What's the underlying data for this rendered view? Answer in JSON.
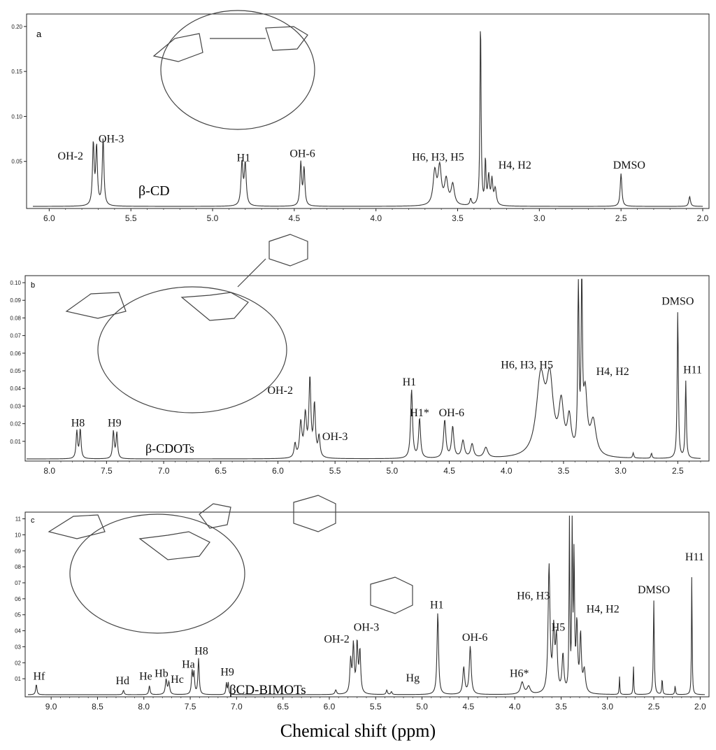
{
  "figure": {
    "xlabel": "Chemical shift (ppm)"
  },
  "chart_data": [
    {
      "type": "line",
      "panel_letter": "a",
      "compound_label": "β-CD",
      "xlim": [
        6.1,
        2.0
      ],
      "ylim": [
        0,
        0.23
      ],
      "x_ticks": [
        "6.0",
        "5.5",
        "5.0",
        "4.5",
        "4.0",
        "3.5",
        "3.0",
        "2.5",
        "2.0"
      ],
      "y_ticks": [
        "0.20",
        "0.15",
        "0.10",
        "0.05"
      ],
      "peaks": [
        {
          "ppm": 5.73,
          "h": 0.075,
          "w": 0.006
        },
        {
          "ppm": 5.71,
          "h": 0.07,
          "w": 0.006
        },
        {
          "ppm": 5.67,
          "h": 0.082,
          "w": 0.006
        },
        {
          "ppm": 4.82,
          "h": 0.052,
          "w": 0.007
        },
        {
          "ppm": 4.8,
          "h": 0.05,
          "w": 0.007
        },
        {
          "ppm": 4.46,
          "h": 0.052,
          "w": 0.006
        },
        {
          "ppm": 4.44,
          "h": 0.045,
          "w": 0.006
        },
        {
          "ppm": 3.64,
          "h": 0.04,
          "w": 0.012
        },
        {
          "ppm": 3.61,
          "h": 0.045,
          "w": 0.012
        },
        {
          "ppm": 3.57,
          "h": 0.03,
          "w": 0.012
        },
        {
          "ppm": 3.53,
          "h": 0.025,
          "w": 0.012
        },
        {
          "ppm": 3.42,
          "h": 0.008,
          "w": 0.006
        },
        {
          "ppm": 3.36,
          "h": 0.23,
          "w": 0.004
        },
        {
          "ppm": 3.33,
          "h": 0.055,
          "w": 0.004
        },
        {
          "ppm": 3.31,
          "h": 0.035,
          "w": 0.006
        },
        {
          "ppm": 3.29,
          "h": 0.03,
          "w": 0.006
        },
        {
          "ppm": 3.27,
          "h": 0.02,
          "w": 0.008
        },
        {
          "ppm": 2.5,
          "h": 0.04,
          "w": 0.006
        },
        {
          "ppm": 2.08,
          "h": 0.012,
          "w": 0.006
        }
      ],
      "annotations": [
        {
          "text": "OH-2",
          "ppm": 5.87,
          "y": 0.057
        },
        {
          "text": "OH-3",
          "ppm": 5.62,
          "y": 0.078
        },
        {
          "text": "H1",
          "ppm": 4.81,
          "y": 0.055
        },
        {
          "text": "OH-6",
          "ppm": 4.45,
          "y": 0.06
        },
        {
          "text": "H6, H3, H5",
          "ppm": 3.62,
          "y": 0.056
        },
        {
          "text": "H4, H2",
          "ppm": 3.15,
          "y": 0.046
        },
        {
          "text": "DMSO",
          "ppm": 2.45,
          "y": 0.046
        }
      ]
    },
    {
      "type": "line",
      "panel_letter": "b",
      "compound_label": "β-CDOTs",
      "xlim": [
        8.2,
        2.3
      ],
      "ylim": [
        0,
        0.105
      ],
      "x_ticks": [
        "8.0",
        "7.5",
        "7.0",
        "6.5",
        "6.0",
        "5.5",
        "5.0",
        "4.5",
        "4.0",
        "3.5",
        "3.0",
        "2.5"
      ],
      "y_ticks": [
        "0.10",
        "0.09",
        "0.08",
        "0.07",
        "0.06",
        "0.05",
        "0.04",
        "0.03",
        "0.02",
        "0.01"
      ],
      "peaks": [
        {
          "ppm": 7.76,
          "h": 0.016,
          "w": 0.008
        },
        {
          "ppm": 7.73,
          "h": 0.017,
          "w": 0.008
        },
        {
          "ppm": 7.44,
          "h": 0.016,
          "w": 0.008
        },
        {
          "ppm": 7.41,
          "h": 0.015,
          "w": 0.008
        },
        {
          "ppm": 5.85,
          "h": 0.008,
          "w": 0.01
        },
        {
          "ppm": 5.8,
          "h": 0.02,
          "w": 0.012
        },
        {
          "ppm": 5.76,
          "h": 0.024,
          "w": 0.012
        },
        {
          "ppm": 5.72,
          "h": 0.045,
          "w": 0.01
        },
        {
          "ppm": 5.68,
          "h": 0.03,
          "w": 0.01
        },
        {
          "ppm": 5.64,
          "h": 0.012,
          "w": 0.01
        },
        {
          "ppm": 4.83,
          "h": 0.04,
          "w": 0.01
        },
        {
          "ppm": 4.76,
          "h": 0.023,
          "w": 0.01
        },
        {
          "ppm": 4.54,
          "h": 0.022,
          "w": 0.012
        },
        {
          "ppm": 4.47,
          "h": 0.018,
          "w": 0.012
        },
        {
          "ppm": 4.38,
          "h": 0.01,
          "w": 0.015
        },
        {
          "ppm": 4.3,
          "h": 0.008,
          "w": 0.015
        },
        {
          "ppm": 4.18,
          "h": 0.006,
          "w": 0.02
        },
        {
          "ppm": 3.7,
          "h": 0.045,
          "w": 0.045
        },
        {
          "ppm": 3.62,
          "h": 0.04,
          "w": 0.035
        },
        {
          "ppm": 3.52,
          "h": 0.028,
          "w": 0.025
        },
        {
          "ppm": 3.45,
          "h": 0.02,
          "w": 0.02
        },
        {
          "ppm": 3.37,
          "h": 0.105,
          "w": 0.006
        },
        {
          "ppm": 3.34,
          "h": 0.105,
          "w": 0.006
        },
        {
          "ppm": 3.31,
          "h": 0.035,
          "w": 0.02
        },
        {
          "ppm": 3.24,
          "h": 0.02,
          "w": 0.03
        },
        {
          "ppm": 2.89,
          "h": 0.003,
          "w": 0.006
        },
        {
          "ppm": 2.73,
          "h": 0.003,
          "w": 0.006
        },
        {
          "ppm": 2.5,
          "h": 0.086,
          "w": 0.006
        },
        {
          "ppm": 2.43,
          "h": 0.045,
          "w": 0.006
        }
      ],
      "annotations": [
        {
          "text": "H8",
          "ppm": 7.75,
          "y": 0.019
        },
        {
          "text": "H9",
          "ppm": 7.43,
          "y": 0.019
        },
        {
          "text": "OH-2",
          "ppm": 5.98,
          "y": 0.038
        },
        {
          "text": "OH-3",
          "ppm": 5.5,
          "y": 0.011
        },
        {
          "text": "H1",
          "ppm": 4.85,
          "y": 0.043
        },
        {
          "text": "H1*",
          "ppm": 4.76,
          "y": 0.025
        },
        {
          "text": "OH-6",
          "ppm": 4.48,
          "y": 0.025
        },
        {
          "text": "H6, H3, H5",
          "ppm": 3.82,
          "y": 0.053
        },
        {
          "text": "H4, H2",
          "ppm": 3.07,
          "y": 0.049
        },
        {
          "text": "DMSO",
          "ppm": 2.5,
          "y": 0.09
        },
        {
          "text": "H11",
          "ppm": 2.37,
          "y": 0.05
        }
      ]
    },
    {
      "type": "line",
      "panel_letter": "c",
      "compound_label": "βCD-BIMOTs",
      "xlim": [
        9.25,
        1.95
      ],
      "ylim": [
        0,
        0.12
      ],
      "x_ticks": [
        "9.0",
        "8.5",
        "8.0",
        "7.5",
        "7.0",
        "6.5",
        "6.0",
        "5.5",
        "5.0",
        "4.5",
        "4.0",
        "3.5",
        "3.0",
        "2.5",
        "2.0"
      ],
      "y_ticks": [
        "11",
        "10",
        "09",
        "08",
        "07",
        "06",
        "05",
        "04",
        "03",
        "02",
        "01"
      ],
      "peaks": [
        {
          "ppm": 9.16,
          "h": 0.007,
          "w": 0.008
        },
        {
          "ppm": 8.22,
          "h": 0.003,
          "w": 0.008
        },
        {
          "ppm": 7.94,
          "h": 0.006,
          "w": 0.008
        },
        {
          "ppm": 7.76,
          "h": 0.01,
          "w": 0.01
        },
        {
          "ppm": 7.73,
          "h": 0.008,
          "w": 0.01
        },
        {
          "ppm": 7.48,
          "h": 0.015,
          "w": 0.008
        },
        {
          "ppm": 7.46,
          "h": 0.014,
          "w": 0.008
        },
        {
          "ppm": 7.41,
          "h": 0.024,
          "w": 0.008
        },
        {
          "ppm": 7.11,
          "h": 0.008,
          "w": 0.006
        },
        {
          "ppm": 7.09,
          "h": 0.008,
          "w": 0.006
        },
        {
          "ppm": 5.93,
          "h": 0.003,
          "w": 0.01
        },
        {
          "ppm": 5.77,
          "h": 0.022,
          "w": 0.01
        },
        {
          "ppm": 5.74,
          "h": 0.032,
          "w": 0.01
        },
        {
          "ppm": 5.7,
          "h": 0.033,
          "w": 0.01
        },
        {
          "ppm": 5.67,
          "h": 0.028,
          "w": 0.01
        },
        {
          "ppm": 5.38,
          "h": 0.003,
          "w": 0.008
        },
        {
          "ppm": 5.33,
          "h": 0.002,
          "w": 0.008
        },
        {
          "ppm": 4.83,
          "h": 0.055,
          "w": 0.01
        },
        {
          "ppm": 4.55,
          "h": 0.018,
          "w": 0.012
        },
        {
          "ppm": 4.48,
          "h": 0.032,
          "w": 0.012
        },
        {
          "ppm": 3.92,
          "h": 0.008,
          "w": 0.02
        },
        {
          "ppm": 3.85,
          "h": 0.005,
          "w": 0.02
        },
        {
          "ppm": 3.63,
          "h": 0.085,
          "w": 0.012
        },
        {
          "ppm": 3.58,
          "h": 0.04,
          "w": 0.012
        },
        {
          "ppm": 3.55,
          "h": 0.035,
          "w": 0.012
        },
        {
          "ppm": 3.48,
          "h": 0.025,
          "w": 0.012
        },
        {
          "ppm": 3.41,
          "h": 0.12,
          "w": 0.005
        },
        {
          "ppm": 3.38,
          "h": 0.12,
          "w": 0.005
        },
        {
          "ppm": 3.36,
          "h": 0.09,
          "w": 0.006
        },
        {
          "ppm": 3.33,
          "h": 0.045,
          "w": 0.01
        },
        {
          "ppm": 3.29,
          "h": 0.038,
          "w": 0.01
        },
        {
          "ppm": 3.25,
          "h": 0.015,
          "w": 0.015
        },
        {
          "ppm": 2.87,
          "h": 0.012,
          "w": 0.004
        },
        {
          "ppm": 2.72,
          "h": 0.02,
          "w": 0.004
        },
        {
          "ppm": 2.5,
          "h": 0.063,
          "w": 0.006
        },
        {
          "ppm": 2.41,
          "h": 0.011,
          "w": 0.005
        },
        {
          "ppm": 2.27,
          "h": 0.006,
          "w": 0.005
        },
        {
          "ppm": 2.09,
          "h": 0.085,
          "w": 0.004
        }
      ],
      "annotations": [
        {
          "text": "Hf",
          "ppm": 9.13,
          "y": 0.01
        },
        {
          "text": "Hd",
          "ppm": 8.23,
          "y": 0.007
        },
        {
          "text": "He",
          "ppm": 7.98,
          "y": 0.01
        },
        {
          "text": "Hb",
          "ppm": 7.81,
          "y": 0.012
        },
        {
          "text": "Hc",
          "ppm": 7.64,
          "y": 0.008
        },
        {
          "text": "Ha",
          "ppm": 7.52,
          "y": 0.018
        },
        {
          "text": "H8",
          "ppm": 7.38,
          "y": 0.027
        },
        {
          "text": "H9",
          "ppm": 7.1,
          "y": 0.013
        },
        {
          "text": "OH-2",
          "ppm": 5.92,
          "y": 0.035
        },
        {
          "text": "OH-3",
          "ppm": 5.6,
          "y": 0.043
        },
        {
          "text": "Hg",
          "ppm": 5.1,
          "y": 0.009
        },
        {
          "text": "H1",
          "ppm": 4.84,
          "y": 0.058
        },
        {
          "text": "OH-6",
          "ppm": 4.43,
          "y": 0.036
        },
        {
          "text": "H6*",
          "ppm": 3.95,
          "y": 0.012
        },
        {
          "text": "H5",
          "ppm": 3.53,
          "y": 0.043
        },
        {
          "text": "H6, H3",
          "ppm": 3.8,
          "y": 0.064
        },
        {
          "text": "H4, H2",
          "ppm": 3.05,
          "y": 0.055
        },
        {
          "text": "DMSO",
          "ppm": 2.5,
          "y": 0.068
        },
        {
          "text": "H11",
          "ppm": 2.06,
          "y": 0.09
        }
      ]
    }
  ]
}
